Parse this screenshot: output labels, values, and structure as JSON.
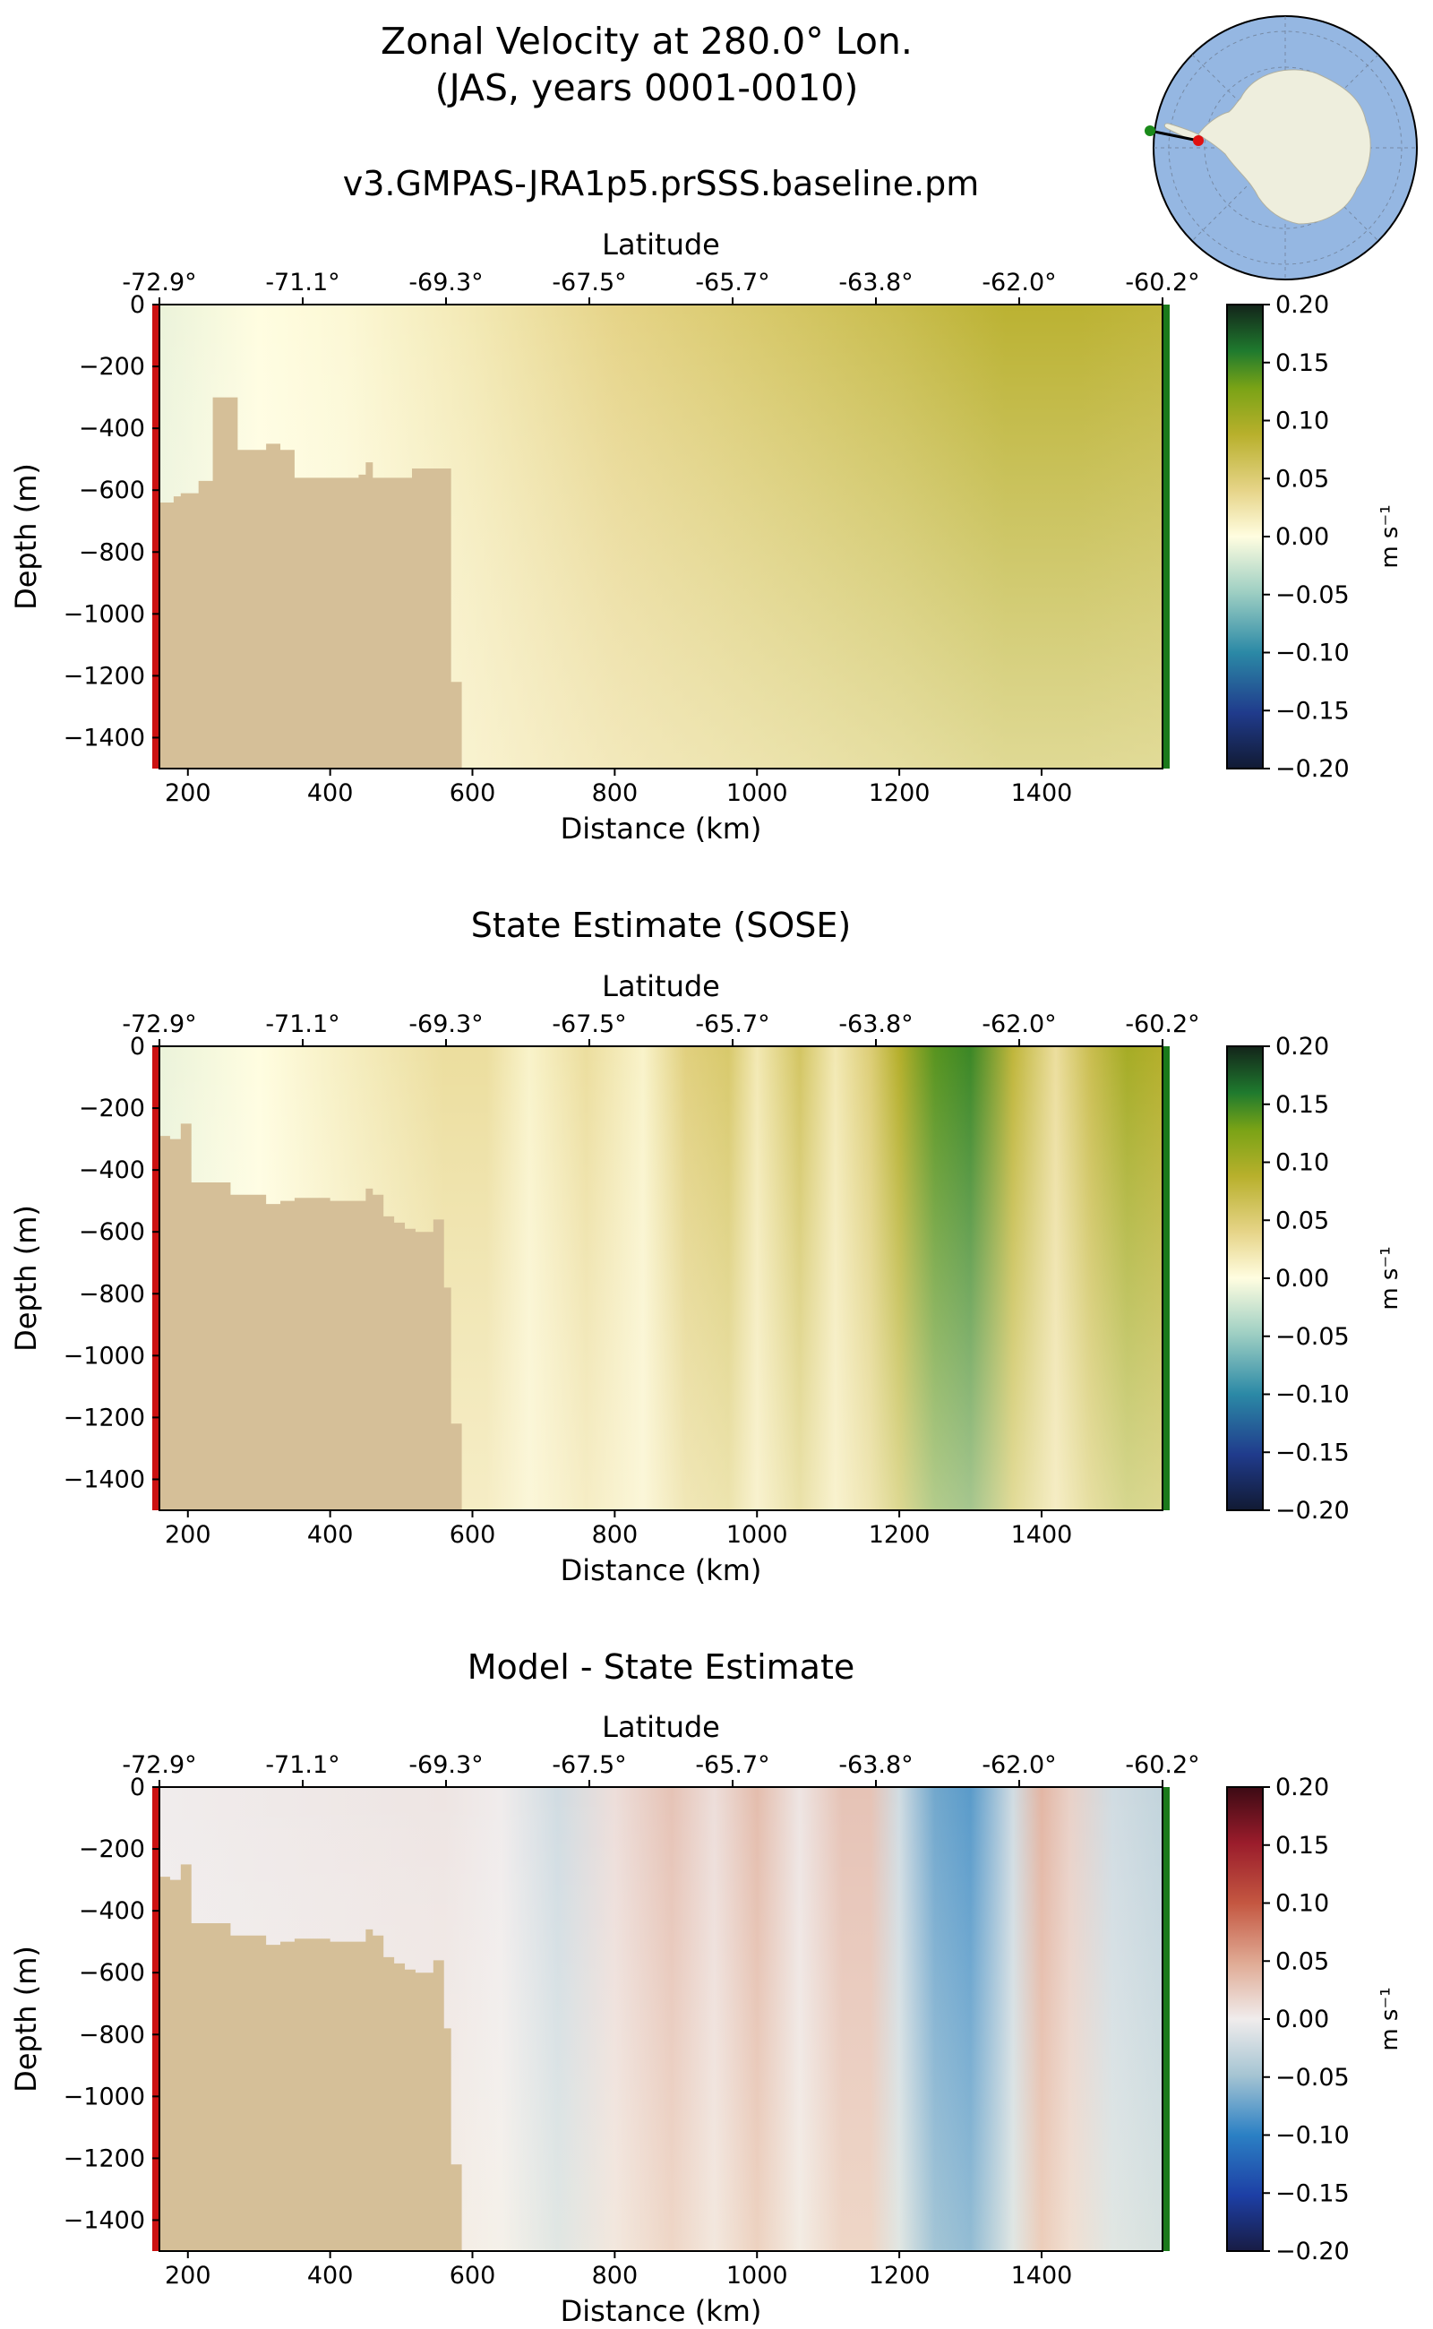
{
  "figure": {
    "title_line1": "Zonal Velocity at 280.0° Lon.",
    "title_line2": "(JAS, years 0001-0010)"
  },
  "inset_map": {
    "description_icon": "antarctica-locator-map-icon",
    "ocean_color": "#95b7e2",
    "land_color": "#eeeedd",
    "start_marker_color": "#1a8a1a",
    "end_marker_color": "#e01010"
  },
  "colors": {
    "land_mask": "#d5bf98",
    "left_boundary": "#cc1111",
    "right_boundary": "#1b7a1b"
  },
  "chart_data": [
    {
      "type": "heatmap",
      "title": "v3.GMPAS-JRA1p5.prSSS.baseline.pm",
      "xlabel": "Distance (km)",
      "ylabel": "Depth (m)",
      "top_xlabel": "Latitude",
      "xlim": [
        160,
        1570
      ],
      "ylim": [
        -1500,
        0
      ],
      "xticks": [
        200,
        400,
        600,
        800,
        1000,
        1200,
        1400
      ],
      "yticks": [
        0,
        -200,
        -400,
        -600,
        -800,
        -1000,
        -1200,
        -1400
      ],
      "lat_ticks": [
        "-72.9°",
        "-71.1°",
        "-69.3°",
        "-67.5°",
        "-65.7°",
        "-63.8°",
        "-62.0°",
        "-60.2°"
      ],
      "colormap": "delta-green",
      "colorbar": {
        "min": -0.2,
        "max": 0.2,
        "label": "m s⁻¹",
        "ticks": [
          "0.20",
          "0.15",
          "0.10",
          "0.05",
          "0.00",
          "−0.05",
          "−0.10",
          "−0.15",
          "−0.20"
        ]
      },
      "field_profile": {
        "distance_km": [
          160,
          300,
          420,
          600,
          800,
          1000,
          1200,
          1350,
          1450,
          1570
        ],
        "surface_velocity": [
          -0.01,
          0.0,
          0.005,
          0.02,
          0.04,
          0.055,
          0.07,
          0.085,
          0.085,
          0.08
        ]
      },
      "bathymetry": {
        "distance_km": [
          160,
          180,
          190,
          215,
          235,
          260,
          270,
          295,
          310,
          330,
          350,
          380,
          410,
          440,
          450,
          460,
          500,
          515,
          560,
          570,
          585
        ],
        "depth_m": [
          -640,
          -620,
          -610,
          -570,
          -300,
          -300,
          -470,
          -470,
          -450,
          -470,
          -560,
          -560,
          -560,
          -550,
          -510,
          -560,
          -560,
          -530,
          -530,
          -1220,
          -1220
        ]
      }
    },
    {
      "type": "heatmap",
      "title": "State Estimate (SOSE)",
      "xlabel": "Distance (km)",
      "ylabel": "Depth (m)",
      "top_xlabel": "Latitude",
      "xlim": [
        160,
        1570
      ],
      "ylim": [
        -1500,
        0
      ],
      "xticks": [
        200,
        400,
        600,
        800,
        1000,
        1200,
        1400
      ],
      "yticks": [
        0,
        -200,
        -400,
        -600,
        -800,
        -1000,
        -1200,
        -1400
      ],
      "lat_ticks": [
        "-72.9°",
        "-71.1°",
        "-69.3°",
        "-67.5°",
        "-65.7°",
        "-63.8°",
        "-62.0°",
        "-60.2°"
      ],
      "colormap": "delta-green",
      "colorbar": {
        "min": -0.2,
        "max": 0.2,
        "label": "m s⁻¹",
        "ticks": [
          "0.20",
          "0.15",
          "0.10",
          "0.05",
          "0.00",
          "−0.05",
          "−0.10",
          "−0.15",
          "−0.20"
        ]
      },
      "field_profile": {
        "distance_km": [
          160,
          300,
          560,
          620,
          680,
          760,
          840,
          900,
          960,
          1000,
          1060,
          1110,
          1160,
          1200,
          1250,
          1300,
          1360,
          1420,
          1470,
          1520,
          1570
        ],
        "surface_velocity": [
          -0.01,
          0.0,
          0.03,
          0.03,
          0.01,
          0.03,
          0.01,
          0.045,
          0.055,
          0.02,
          0.06,
          0.02,
          0.05,
          0.09,
          0.14,
          0.15,
          0.08,
          0.03,
          0.07,
          0.1,
          0.09
        ]
      },
      "bathymetry": {
        "distance_km": [
          160,
          175,
          190,
          205,
          230,
          260,
          290,
          310,
          330,
          350,
          400,
          430,
          450,
          460,
          475,
          490,
          505,
          520,
          545,
          560,
          570,
          585
        ],
        "depth_m": [
          -290,
          -300,
          -250,
          -440,
          -440,
          -480,
          -480,
          -510,
          -500,
          -490,
          -500,
          -500,
          -460,
          -480,
          -550,
          -570,
          -590,
          -600,
          -560,
          -780,
          -1220,
          -1220
        ]
      }
    },
    {
      "type": "heatmap",
      "title": "Model - State Estimate",
      "xlabel": "Distance (km)",
      "ylabel": "Depth (m)",
      "top_xlabel": "Latitude",
      "xlim": [
        160,
        1570
      ],
      "ylim": [
        -1500,
        0
      ],
      "xticks": [
        200,
        400,
        600,
        800,
        1000,
        1200,
        1400
      ],
      "yticks": [
        0,
        -200,
        -400,
        -600,
        -800,
        -1000,
        -1200,
        -1400
      ],
      "lat_ticks": [
        "-72.9°",
        "-71.1°",
        "-69.3°",
        "-67.5°",
        "-65.7°",
        "-63.8°",
        "-62.0°",
        "-60.2°"
      ],
      "colormap": "balance",
      "colorbar": {
        "min": -0.2,
        "max": 0.2,
        "label": "m s⁻¹",
        "ticks": [
          "0.20",
          "0.15",
          "0.10",
          "0.05",
          "0.00",
          "−0.05",
          "−0.10",
          "−0.15",
          "−0.20"
        ]
      },
      "field_profile": {
        "distance_km": [
          160,
          560,
          640,
          720,
          800,
          880,
          940,
          1000,
          1060,
          1120,
          1160,
          1200,
          1250,
          1300,
          1360,
          1400,
          1440,
          1500,
          1570
        ],
        "surface_velocity": [
          0.0,
          0.005,
          0.0,
          -0.02,
          0.01,
          0.03,
          0.01,
          0.035,
          0.005,
          0.03,
          0.03,
          -0.02,
          -0.07,
          -0.08,
          -0.02,
          0.04,
          0.02,
          -0.02,
          -0.03
        ]
      },
      "bathymetry": {
        "distance_km": [
          160,
          175,
          190,
          205,
          230,
          260,
          290,
          310,
          330,
          350,
          400,
          430,
          450,
          460,
          475,
          490,
          505,
          520,
          545,
          560,
          570,
          585
        ],
        "depth_m": [
          -290,
          -300,
          -250,
          -440,
          -440,
          -480,
          -480,
          -510,
          -500,
          -490,
          -500,
          -500,
          -460,
          -480,
          -550,
          -570,
          -590,
          -600,
          -560,
          -780,
          -1220,
          -1220
        ]
      }
    }
  ]
}
